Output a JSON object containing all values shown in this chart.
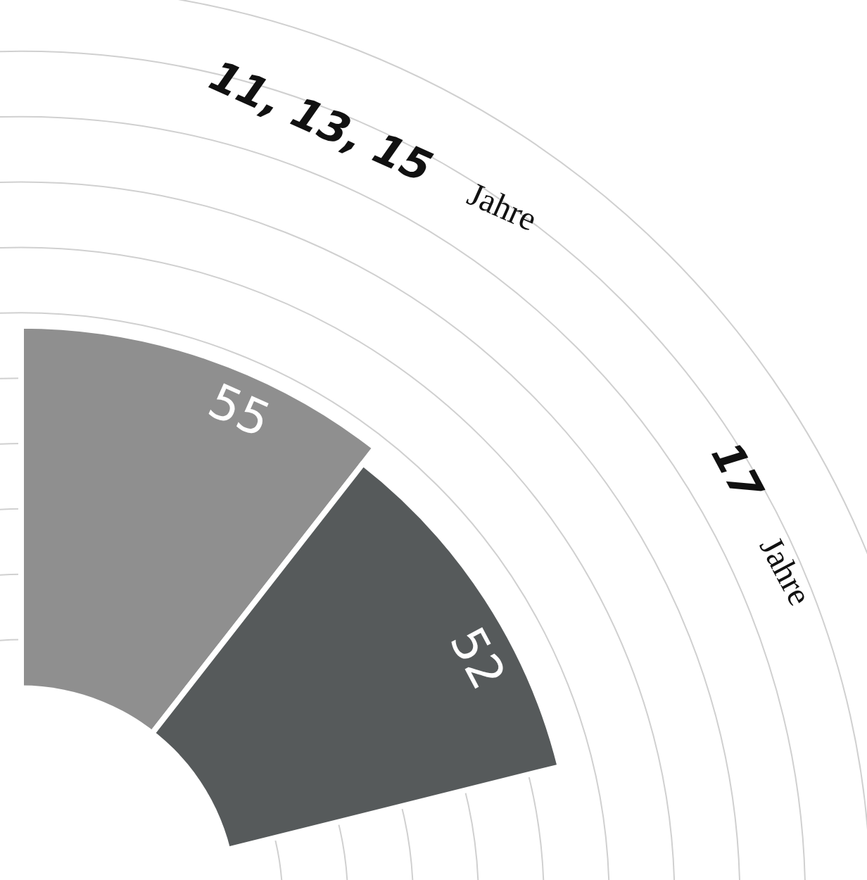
{
  "chart_data": {
    "type": "other",
    "categories": [
      "11, 13, 15 Jahre",
      "17 Jahre"
    ],
    "values": [
      55,
      52
    ],
    "colors": [
      "#8f8f8f",
      "#565a5b"
    ],
    "data_labels": true
  }
}
